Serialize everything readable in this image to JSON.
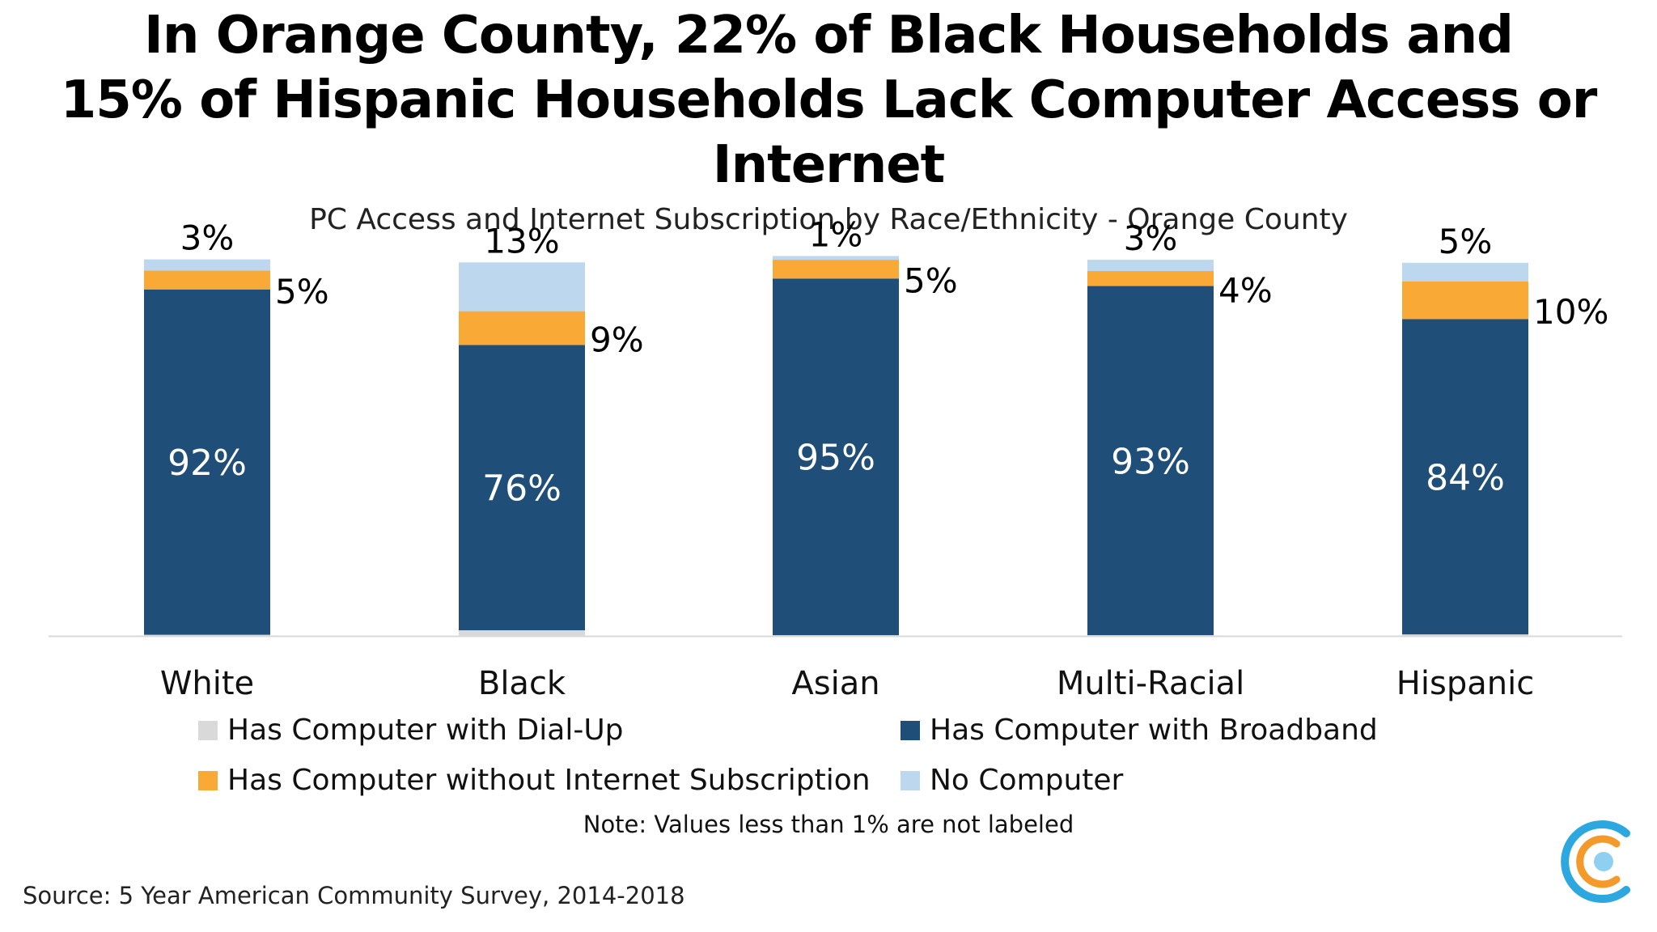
{
  "title_lines": [
    "In Orange County, 22% of Black Households and",
    "15% of Hispanic Households Lack Computer Access or Internet"
  ],
  "subtitle": "PC Access and Internet Subscription by Race/Ethnicity - Orange County",
  "note": "Note: Values less than 1% are not labeled",
  "source": "Source: 5 Year American Community Survey, 2014-2018",
  "colors": {
    "dialup": "#d9d9d9",
    "broadband": "#1f4e79",
    "no_subscription": "#f9a935",
    "no_computer": "#bdd7ee"
  },
  "logo": {
    "icon": "concentric-c-logo-icon",
    "colors": [
      "#2ca7df",
      "#f39a2b",
      "#8fd0f0"
    ]
  },
  "chart_data": {
    "type": "bar",
    "stacked": true,
    "categories": [
      "White",
      "Black",
      "Asian",
      "Multi-Racial",
      "Hispanic"
    ],
    "series": [
      {
        "name": "Has Computer with Dial-Up",
        "values": [
          0.3,
          1.5,
          0.2,
          0.2,
          0.4
        ],
        "labels": [
          "",
          "",
          "",
          "",
          ""
        ]
      },
      {
        "name": "Has Computer with Broadband",
        "values": [
          92,
          76,
          95,
          93,
          84
        ],
        "labels": [
          "92%",
          "76%",
          "95%",
          "93%",
          "84%"
        ]
      },
      {
        "name": "Has Computer without Internet Subscription",
        "values": [
          5,
          9,
          5,
          4,
          10
        ],
        "labels": [
          "5%",
          "9%",
          "5%",
          "4%",
          "10%"
        ]
      },
      {
        "name": "No Computer",
        "values": [
          3,
          13,
          1,
          3,
          5
        ],
        "labels": [
          "3%",
          "13%",
          "1%",
          "3%",
          "5%"
        ]
      }
    ],
    "legend": [
      {
        "name": "Has Computer with Dial-Up",
        "color": "#d9d9d9"
      },
      {
        "name": "Has Computer with Broadband",
        "color": "#1f4e79"
      },
      {
        "name": "Has Computer without Internet Subscription",
        "color": "#f9a935"
      },
      {
        "name": "No Computer",
        "color": "#bdd7ee"
      }
    ],
    "ylim": [
      0,
      100
    ],
    "grid": false,
    "legend_position": "bottom"
  }
}
